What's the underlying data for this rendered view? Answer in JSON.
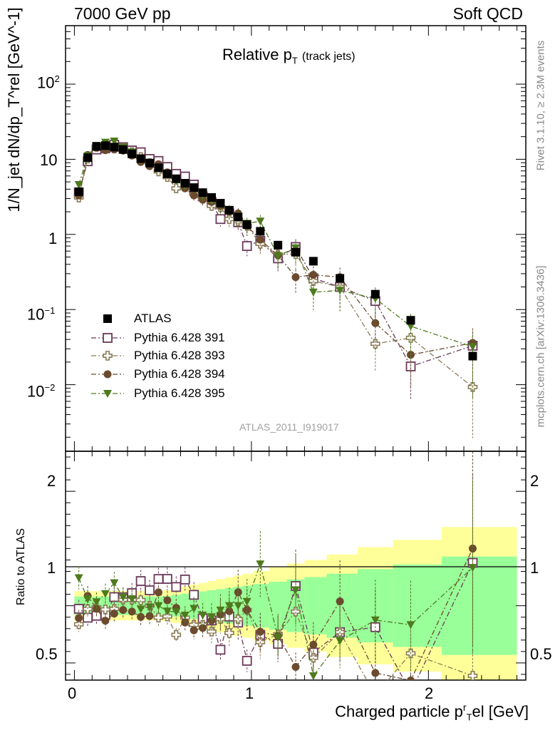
{
  "header": {
    "left": "7000 GeV pp",
    "right": "Soft QCD"
  },
  "side_text": {
    "upper": "Rivet 3.1.10, ≥ 2.3M events",
    "lower": "mcplots.cern.ch [arXiv:1306.3436]"
  },
  "chart_data": {
    "type": "scatter",
    "title": "Relative p_T (track jets)",
    "title_main": "Relative p",
    "title_sub": "T",
    "title_note": "(track jets)",
    "watermark": "ATLAS_2011_I919017",
    "xlabel": "Charged particle p_T^rel [GeV]",
    "xlabel_main": "Charged particle p",
    "xlabel_sup": "r",
    "xlabel_sub": "T",
    "xlabel_unit": "el [GeV]",
    "ylabel": "1/N_jet dN/dp_T^rel [GeV^-1]",
    "ylabel_ratio": "Ratio to ATLAS",
    "xlim": [
      -0.05,
      2.55
    ],
    "ylim": [
      0.0013,
      600
    ],
    "ylog": true,
    "ratio_ylim": [
      0.35,
      2.35
    ],
    "x_ticks": [
      "0",
      "1",
      "2"
    ],
    "y_ticks": [
      "10^-2",
      "10^-1",
      "1",
      "10",
      "10^2"
    ],
    "ratio_ticks": [
      "0.5",
      "1",
      "2"
    ],
    "legend_placement": "lower-left",
    "x": [
      0.025,
      0.075,
      0.125,
      0.175,
      0.225,
      0.275,
      0.325,
      0.375,
      0.425,
      0.475,
      0.525,
      0.575,
      0.625,
      0.675,
      0.725,
      0.775,
      0.825,
      0.875,
      0.925,
      0.975,
      1.05,
      1.15,
      1.25,
      1.35,
      1.5,
      1.7,
      1.9,
      2.25
    ],
    "series": [
      {
        "name": "ATLAS",
        "color": "#000000",
        "marker": "filled-square",
        "values": [
          3.7,
          10.5,
          14.8,
          15.2,
          14.5,
          13.5,
          11.8,
          10.2,
          8.9,
          7.7,
          6.4,
          5.5,
          4.8,
          4.2,
          3.6,
          3.1,
          2.6,
          2.1,
          1.7,
          1.35,
          1.1,
          0.72,
          0.58,
          0.44,
          0.26,
          0.16,
          0.072,
          0.024
        ]
      },
      {
        "name": "Pythia 6.428 391",
        "color": "#6b3a5a",
        "marker": "open-square",
        "values": [
          3.6,
          9.4,
          13.5,
          14.0,
          15.6,
          14.5,
          13.1,
          12.4,
          10.1,
          9.5,
          7.9,
          6.4,
          5.9,
          4.6,
          3.2,
          2.7,
          1.6,
          1.9,
          1.45,
          0.7,
          0.82,
          0.48,
          0.68,
          0.26,
          0.2,
          0.13,
          0.0175,
          0.033
        ]
      },
      {
        "name": "Pythia 6.428 393",
        "color": "#8a7a55",
        "marker": "open-cross",
        "values": [
          3.1,
          10.2,
          14.6,
          14.7,
          14.1,
          14.2,
          12.4,
          10.7,
          8.9,
          6.9,
          5.8,
          4.1,
          4.3,
          3.5,
          3.0,
          2.4,
          2.3,
          1.6,
          1.5,
          1.3,
          0.75,
          0.54,
          0.55,
          0.24,
          0.2,
          0.035,
          0.042,
          0.0093
        ]
      },
      {
        "name": "Pythia 6.428 394",
        "color": "#6b4a2e",
        "marker": "filled-circle",
        "values": [
          3.3,
          11.4,
          14.4,
          13.2,
          13.5,
          13.0,
          11.2,
          9.2,
          8.1,
          8.6,
          6.7,
          5.4,
          4.1,
          3.3,
          2.9,
          2.7,
          2.4,
          2.0,
          1.9,
          1.3,
          0.85,
          0.53,
          0.27,
          0.29,
          0.27,
          0.066,
          0.025,
          0.036
        ]
      },
      {
        "name": "Pythia 6.428 395",
        "color": "#4e7a1e",
        "marker": "filled-triangle-down",
        "values": [
          4.6,
          11.1,
          15.3,
          16.8,
          17.4,
          14.5,
          12.5,
          9.9,
          8.8,
          7.7,
          6.1,
          5.2,
          4.4,
          4.1,
          3.3,
          2.8,
          2.5,
          2.1,
          1.7,
          1.4,
          1.5,
          0.52,
          0.66,
          0.17,
          0.18,
          0.14,
          0.06,
          0.032
        ]
      }
    ]
  }
}
